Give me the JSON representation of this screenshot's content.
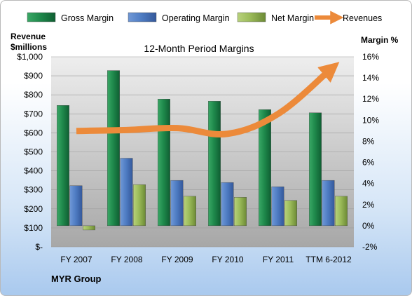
{
  "company": "MYR Group",
  "chart_data": {
    "type": "bar",
    "title": "12-Month Period Margins",
    "left_axis_title": [
      "Revenue",
      "$millions"
    ],
    "right_axis_title": "Margin %",
    "categories": [
      "FY 2007",
      "FY 2008",
      "FY 2009",
      "FY 2010",
      "FY 2011",
      "TTM 6-2012"
    ],
    "left_ticks": [
      "$-",
      "$100",
      "$200",
      "$300",
      "$400",
      "$500",
      "$600",
      "$700",
      "$800",
      "$900",
      "$1,000"
    ],
    "right_ticks": [
      "-2%",
      "0%",
      "2%",
      "4%",
      "6%",
      "8%",
      "10%",
      "12%",
      "14%",
      "16%"
    ],
    "ylim_left": [
      0,
      1000
    ],
    "ylim_right": [
      -2,
      16
    ],
    "legend_position": "top",
    "series": [
      {
        "name": "Gross Margin",
        "axis": "right",
        "color": "#1f8a4c",
        "values": [
          11.4,
          14.7,
          12.0,
          11.8,
          11.0,
          10.7
        ]
      },
      {
        "name": "Operating Margin",
        "axis": "right",
        "color": "#4f7dc4",
        "values": [
          3.8,
          6.4,
          4.3,
          4.1,
          3.7,
          4.3
        ]
      },
      {
        "name": "Net Margin",
        "axis": "right",
        "color": "#9bbb59",
        "values": [
          -0.4,
          3.9,
          2.8,
          2.7,
          2.4,
          2.8
        ]
      },
      {
        "name": "Revenues",
        "axis": "left",
        "type": "line",
        "color": "#ec8a3a",
        "values": [
          610,
          615,
          625,
          595,
          700,
          925
        ]
      }
    ]
  }
}
